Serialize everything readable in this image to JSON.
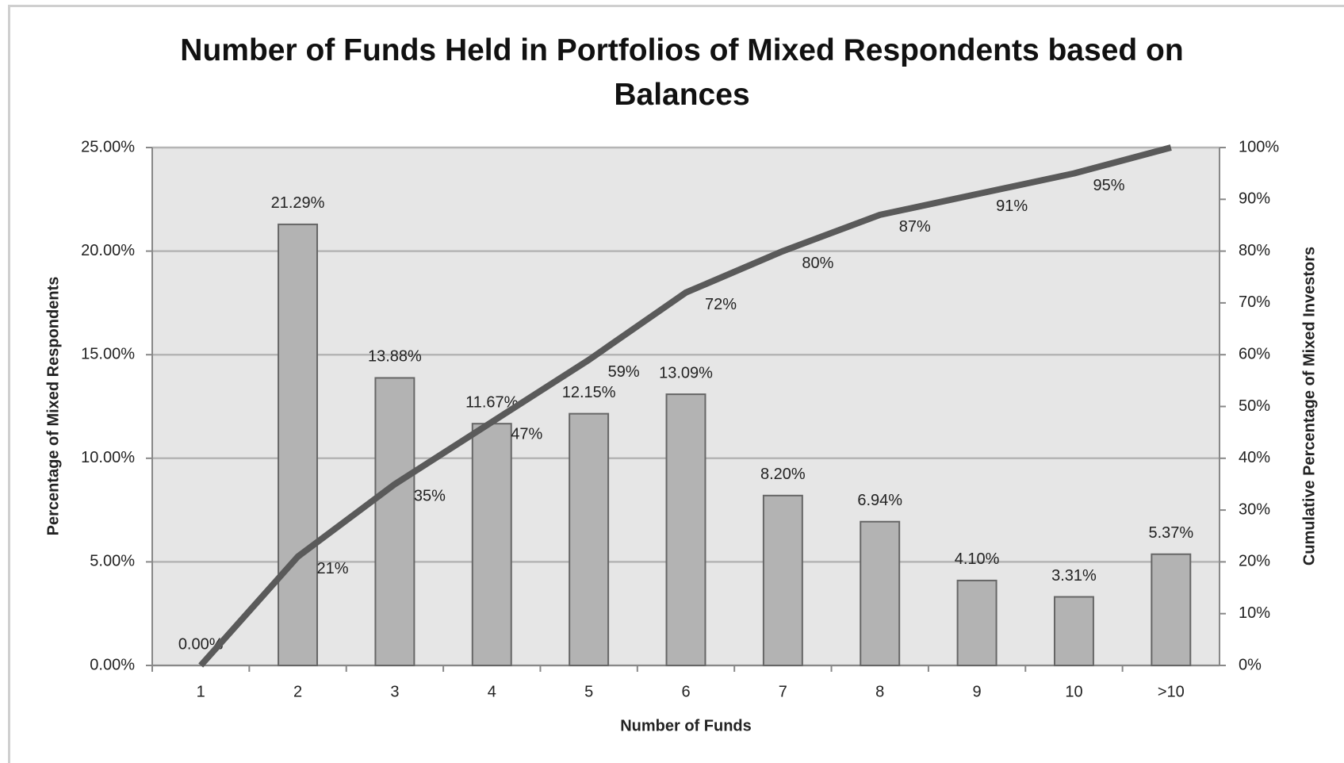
{
  "chart_data": {
    "type": "bar",
    "title": "Number of Funds Held in Portfolios of Mixed Respondents based on Balances",
    "x_label": "Number of Funds",
    "y_label": "Percentage  of Mixed Respondents",
    "y2_label": "Cumulative Percentage of Mixed Investors",
    "categories": [
      "1",
      "2",
      "3",
      "4",
      "5",
      "6",
      "7",
      "8",
      "9",
      "10",
      ">10"
    ],
    "series": [
      {
        "type": "bar",
        "color": "#b3b3b3",
        "values": [
          0,
          21.29,
          13.88,
          11.67,
          12.15,
          13.09,
          8.2,
          6.94,
          4.1,
          3.31,
          5.37
        ],
        "value_labels": [
          "0.00%",
          "21.29%",
          "13.88%",
          "11.67%",
          "12.15%",
          "13.09%",
          "8.20%",
          "6.94%",
          "4.10%",
          "3.31%",
          "5.37%"
        ]
      },
      {
        "type": "line",
        "axis": "y2",
        "color": "#5a5a5a",
        "values": [
          0,
          21,
          35,
          47,
          59,
          72,
          80,
          87,
          91,
          95,
          100
        ],
        "value_labels": [
          null,
          "21%",
          "35%",
          "47%",
          "59%",
          "72%",
          "80%",
          "87%",
          "91%",
          "95%",
          null
        ]
      }
    ],
    "ylim": [
      0,
      25
    ],
    "yticks": [
      {
        "value": 0,
        "label": "0.00%"
      },
      {
        "value": 5,
        "label": "5.00%"
      },
      {
        "value": 10,
        "label": "10.00%"
      },
      {
        "value": 15,
        "label": "15.00%"
      },
      {
        "value": 20,
        "label": "20.00%"
      },
      {
        "value": 25,
        "label": "25.00%"
      }
    ],
    "y2lim": [
      0,
      100
    ],
    "y2ticks": [
      {
        "value": 0,
        "label": "0%"
      },
      {
        "value": 10,
        "label": "10%"
      },
      {
        "value": 20,
        "label": "20%"
      },
      {
        "value": 30,
        "label": "30%"
      },
      {
        "value": 40,
        "label": "40%"
      },
      {
        "value": 50,
        "label": "50%"
      },
      {
        "value": 60,
        "label": "60%"
      },
      {
        "value": 70,
        "label": "70%"
      },
      {
        "value": 80,
        "label": "80%"
      },
      {
        "value": 90,
        "label": "90%"
      },
      {
        "value": 100,
        "label": "100%"
      }
    ],
    "grid": true
  }
}
